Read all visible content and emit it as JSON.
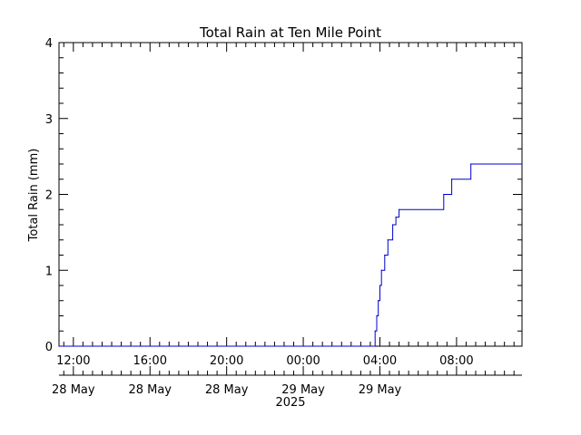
{
  "chart_data": {
    "type": "line",
    "title": "Total Rain at Ten Mile Point",
    "ylabel": "Total Rain (mm)",
    "xlabel": "",
    "year_label": "2025",
    "grid": false,
    "legend": "none",
    "xlim": [
      "2025-05-28 11:15",
      "2025-05-29 11:25"
    ],
    "ylim": [
      0,
      4
    ],
    "y_ticks": [
      0,
      1,
      2,
      3,
      4
    ],
    "y_tick_labels": [
      "0",
      "1",
      "2",
      "3",
      "4"
    ],
    "x_ticks": [
      {
        "at": "2025-05-28 12:00",
        "time": "12:00",
        "date": "28 May"
      },
      {
        "at": "2025-05-28 16:00",
        "time": "16:00",
        "date": "28 May"
      },
      {
        "at": "2025-05-28 20:00",
        "time": "20:00",
        "date": "28 May"
      },
      {
        "at": "2025-05-29 00:00",
        "time": "00:00",
        "date": "29 May"
      },
      {
        "at": "2025-05-29 04:00",
        "time": "04:00",
        "date": "29 May"
      },
      {
        "at": "2025-05-29 08:00",
        "time": "08:00",
        "date": ""
      }
    ],
    "series": [
      {
        "color": "#0000cc",
        "x": [
          "2025-05-28 11:15",
          "2025-05-29 03:45",
          "2025-05-29 03:50",
          "2025-05-29 03:55",
          "2025-05-29 04:00",
          "2025-05-29 04:05",
          "2025-05-29 04:15",
          "2025-05-29 04:25",
          "2025-05-29 04:40",
          "2025-05-29 04:50",
          "2025-05-29 05:00",
          "2025-05-29 07:20",
          "2025-05-29 07:45",
          "2025-05-29 08:45",
          "2025-05-29 11:25"
        ],
        "y": [
          0,
          0.2,
          0.4,
          0.6,
          0.8,
          1.0,
          1.2,
          1.4,
          1.6,
          1.7,
          1.8,
          2.0,
          2.2,
          2.4,
          2.4
        ]
      }
    ]
  }
}
